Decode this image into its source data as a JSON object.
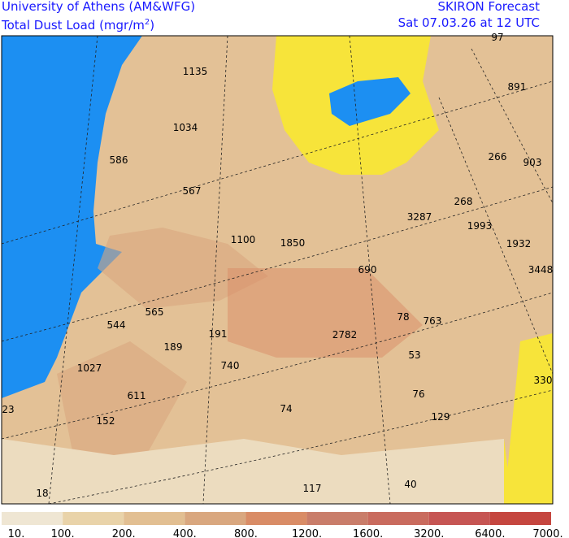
{
  "header": {
    "left_line1": "University of Athens (AM&WFG)",
    "left_line2": [
      "Total Dust Load (mgr/m",
      "2",
      ")"
    ],
    "right_line1": "SKIRON Forecast",
    "right_line2": "Sat 07.03.26 at 12 UTC"
  },
  "map_labels": [
    "1135",
    "1034",
    "586",
    "567",
    "97",
    "891",
    "266",
    "903",
    "268",
    "3287",
    "1993",
    "1932",
    "3448",
    "1100",
    "1850",
    "690",
    "565",
    "544",
    "191",
    "78",
    "763",
    "2782",
    "189",
    "740",
    "1027",
    "53",
    "330",
    "23",
    "611",
    "76",
    "74",
    "152",
    "129",
    "117",
    "40",
    "18"
  ],
  "legend": {
    "colors": [
      "#efe6d3",
      "#e9d3a9",
      "#e2bf92",
      "#d9a77f",
      "#d98c66",
      "#c97d6a",
      "#c96b5e",
      "#c65553",
      "#c5463f"
    ],
    "labels": [
      "10.",
      "100.",
      "200.",
      "400.",
      "800.",
      "1200.",
      "1600.",
      "3200.",
      "6400.",
      "7000."
    ]
  }
}
